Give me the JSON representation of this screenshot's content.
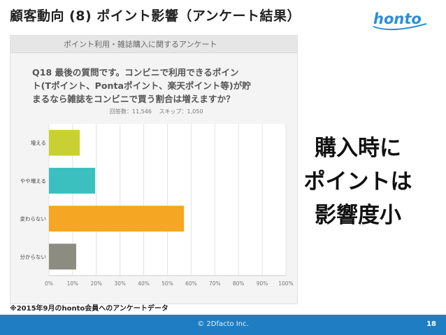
{
  "slide": {
    "title": "顧客動向 (8) ポイント影響（アンケート結果）",
    "logo_text": "honto",
    "message_lines": [
      "購入時に",
      "ポイントは",
      "影響度小"
    ],
    "footnote": "※2015年9月のhonto会員へのアンケートデータ",
    "copyright": "© 2Dfacto Inc.",
    "page_number": "18"
  },
  "panel": {
    "header": "ポイント利用・雑誌購入に関するアンケート",
    "question_lines": [
      "Q18 最後の質問です。コンビニで利用できるポイン",
      "ト(Tポイント、Pontaポイント、楽天ポイント等)が貯",
      "まるなら雑誌をコンビニで買う割合は増えますか？"
    ],
    "respondents": "回答数：11,546",
    "skips": "スキップ：1,050"
  },
  "colors": {
    "accent": "#1f7ec3",
    "logo": "#2b8fd6"
  },
  "chart_data": {
    "type": "bar",
    "orientation": "horizontal",
    "categories": [
      "増える",
      "やや増える",
      "変わらない",
      "分からない"
    ],
    "values": [
      13,
      19.5,
      57,
      11.5
    ],
    "colors": [
      "#c9d132",
      "#3bbfbf",
      "#f5a623",
      "#8c8c80"
    ],
    "xlim": [
      0,
      100
    ],
    "xticks": [
      "0%",
      "10%",
      "20%",
      "30%",
      "40%",
      "50%",
      "60%",
      "70%",
      "80%",
      "90%",
      "100%"
    ],
    "grid": true
  }
}
